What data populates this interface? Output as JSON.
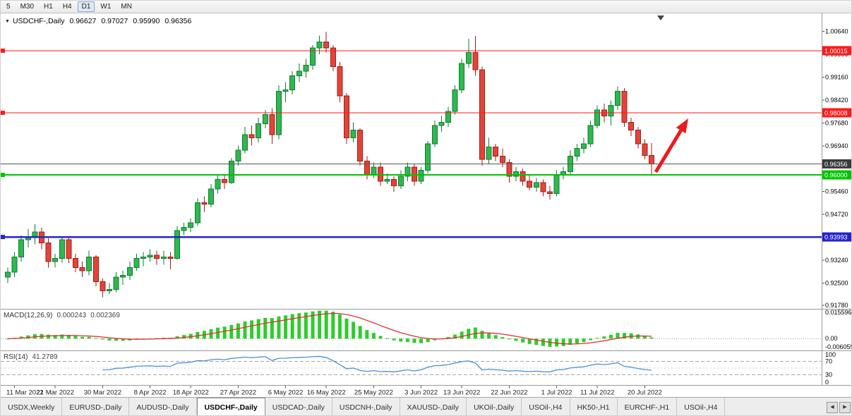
{
  "toolbar": {
    "timeframes": [
      {
        "label": "5",
        "active": false
      },
      {
        "label": "M30",
        "active": false
      },
      {
        "label": "H1",
        "active": false
      },
      {
        "label": "H4",
        "active": false
      },
      {
        "label": "D1",
        "active": true
      },
      {
        "label": "W1",
        "active": false
      },
      {
        "label": "MN",
        "active": false
      }
    ]
  },
  "chart": {
    "dropdown_icon": "▼",
    "title_symbol": "USDCHF-,Daily",
    "ohlc_display": {
      "open": "0.96627",
      "high": "0.97027",
      "low": "0.95990",
      "close": "0.96356"
    }
  },
  "macd_panel": {
    "label": "MACD(12,26,9)",
    "main_value": "0.000243",
    "signal_value": "0.002369",
    "axis_labels": [
      "0.015596",
      "0.00",
      "-0.006055"
    ]
  },
  "rsi_panel": {
    "label": "RSI(14)",
    "value": "41.2789",
    "level_labels": [
      "100",
      "70",
      "30",
      "0"
    ]
  },
  "tabs": {
    "scroll_left_icon": "◀",
    "scroll_right_icon": "▶",
    "items": [
      {
        "label": "USDX,Weekly",
        "active": false
      },
      {
        "label": "EURUSD-,Daily",
        "active": false
      },
      {
        "label": "AUDUSD-,Daily",
        "active": false
      },
      {
        "label": "USDCHF-,Daily",
        "active": true
      },
      {
        "label": "USDCAD-,Daily",
        "active": false
      },
      {
        "label": "USDCNH-,Daily",
        "active": false
      },
      {
        "label": "XAUUSD-,Daily",
        "active": false
      },
      {
        "label": "UKOil-,Daily",
        "active": false
      },
      {
        "label": "USOil-,H4",
        "active": false
      },
      {
        "label": "HK50-,H1",
        "active": false
      },
      {
        "label": "EURCHF-,H1",
        "active": false
      },
      {
        "label": "USOil-,H4",
        "active": false
      }
    ]
  },
  "chart_data": {
    "type": "candlestick",
    "symbol": "USDCHF",
    "timeframe": "Daily",
    "current": {
      "open": 0.96627,
      "high": 0.97027,
      "low": 0.9599,
      "close": 0.96356
    },
    "y_range": [
      0.9167,
      1.0122
    ],
    "y_ticks": [
      1.0064,
      0.999,
      0.9916,
      0.9842,
      0.9768,
      0.9694,
      0.9546,
      0.9472,
      0.9324,
      0.925,
      0.9178
    ],
    "x_ticks": [
      {
        "i": 1,
        "label": "11 Mar 2022"
      },
      {
        "i": 7,
        "label": "21 Mar 2022"
      },
      {
        "i": 14,
        "label": "30 Mar 2022"
      },
      {
        "i": 21,
        "label": "8 Apr 2022"
      },
      {
        "i": 27,
        "label": "18 Apr 2022"
      },
      {
        "i": 34,
        "label": "27 Apr 2022"
      },
      {
        "i": 41,
        "label": "6 May 2022"
      },
      {
        "i": 47,
        "label": "16 May 2022"
      },
      {
        "i": 54,
        "label": "25 May 2022"
      },
      {
        "i": 61,
        "label": "3 Jun 2022"
      },
      {
        "i": 67,
        "label": "13 Jun 2022"
      },
      {
        "i": 74,
        "label": "22 Jun 2022"
      },
      {
        "i": 81,
        "label": "1 Jul 2022"
      },
      {
        "i": 87,
        "label": "11 Jul 2022"
      },
      {
        "i": 94,
        "label": "20 Jul 2022"
      }
    ],
    "hlines": [
      {
        "label": "1.00015",
        "price": 1.00015,
        "color": "#ff1a1a",
        "width": 1.2,
        "handle": true
      },
      {
        "label": "0.98008",
        "price": 0.98008,
        "color": "#ff1a1a",
        "width": 1.2,
        "handle": true
      },
      {
        "label": "0.96356",
        "price": 0.96356,
        "color": "#555555",
        "badge_color": "#3a3a3a",
        "width": 1,
        "handle": false,
        "role": "current-price"
      },
      {
        "label": "0.96000",
        "price": 0.96,
        "color": "#00c400",
        "width": 2,
        "handle": true
      },
      {
        "label": "0.93993",
        "price": 0.93993,
        "color": "#2424cc",
        "width": 2.4,
        "handle": true
      }
    ],
    "arrow": {
      "color": "#ea1c1c",
      "direction": "up-right"
    },
    "colors": {
      "bull_fill": "#2fb84f",
      "bull_stroke": "#117a33",
      "bear_fill": "#e3443a",
      "bear_stroke": "#9c1f17"
    },
    "macd": {
      "params": [
        12,
        26,
        9
      ],
      "range": [
        -0.0065,
        0.016
      ],
      "hist_color": "#2ecc2e",
      "signal_color": "#e03030"
    },
    "rsi": {
      "period": 14,
      "levels": [
        100,
        70,
        30,
        0
      ],
      "color": "#4a8fd4"
    },
    "ohlc": [
      [
        "10 Mar",
        0.927,
        0.93,
        0.925,
        0.9285
      ],
      [
        "11 Mar",
        0.9285,
        0.935,
        0.927,
        0.9335
      ],
      [
        "14 Mar",
        0.9335,
        0.9405,
        0.932,
        0.939
      ],
      [
        "15 Mar",
        0.939,
        0.9425,
        0.9365,
        0.94
      ],
      [
        "16 Mar",
        0.94,
        0.944,
        0.9375,
        0.9415
      ],
      [
        "17 Mar",
        0.9415,
        0.943,
        0.936,
        0.938
      ],
      [
        "18 Mar",
        0.938,
        0.9395,
        0.93,
        0.932
      ],
      [
        "21 Mar",
        0.932,
        0.9345,
        0.93,
        0.933
      ],
      [
        "22 Mar",
        0.933,
        0.94,
        0.9315,
        0.939
      ],
      [
        "23 Mar",
        0.939,
        0.94,
        0.9315,
        0.933
      ],
      [
        "24 Mar",
        0.933,
        0.9345,
        0.9285,
        0.93
      ],
      [
        "25 Mar",
        0.93,
        0.932,
        0.927,
        0.929
      ],
      [
        "28 Mar",
        0.929,
        0.9355,
        0.9275,
        0.9335
      ],
      [
        "29 Mar",
        0.9335,
        0.934,
        0.924,
        0.9255
      ],
      [
        "30 Mar",
        0.9255,
        0.9265,
        0.9205,
        0.9225
      ],
      [
        "31 Mar",
        0.9225,
        0.925,
        0.9215,
        0.923
      ],
      [
        "1 Apr",
        0.923,
        0.9285,
        0.922,
        0.927
      ],
      [
        "4 Apr",
        0.927,
        0.929,
        0.9245,
        0.9275
      ],
      [
        "5 Apr",
        0.9275,
        0.932,
        0.926,
        0.93
      ],
      [
        "6 Apr",
        0.93,
        0.9345,
        0.929,
        0.933
      ],
      [
        "7 Apr",
        0.933,
        0.935,
        0.9305,
        0.9335
      ],
      [
        "8 Apr",
        0.9335,
        0.936,
        0.932,
        0.934
      ],
      [
        "11 Apr",
        0.934,
        0.9355,
        0.931,
        0.933
      ],
      [
        "12 Apr",
        0.933,
        0.9355,
        0.931,
        0.9335
      ],
      [
        "13 Apr",
        0.9335,
        0.935,
        0.9295,
        0.933
      ],
      [
        "14 Apr",
        0.933,
        0.9435,
        0.9325,
        0.942
      ],
      [
        "15 Apr",
        0.942,
        0.9445,
        0.9405,
        0.943
      ],
      [
        "18 Apr",
        0.943,
        0.946,
        0.9415,
        0.9445
      ],
      [
        "19 Apr",
        0.9445,
        0.9525,
        0.9435,
        0.951
      ],
      [
        "20 Apr",
        0.951,
        0.953,
        0.948,
        0.9505
      ],
      [
        "21 Apr",
        0.9505,
        0.957,
        0.9495,
        0.9555
      ],
      [
        "22 Apr",
        0.9555,
        0.96,
        0.954,
        0.9585
      ],
      [
        "25 Apr",
        0.9585,
        0.96,
        0.9555,
        0.9575
      ],
      [
        "26 Apr",
        0.9575,
        0.9655,
        0.957,
        0.9645
      ],
      [
        "27 Apr",
        0.9645,
        0.9695,
        0.963,
        0.968
      ],
      [
        "28 Apr",
        0.968,
        0.9755,
        0.967,
        0.973
      ],
      [
        "29 Apr",
        0.973,
        0.976,
        0.9695,
        0.972
      ],
      [
        "2 May",
        0.972,
        0.9785,
        0.9705,
        0.9765
      ],
      [
        "3 May",
        0.9765,
        0.981,
        0.975,
        0.9795
      ],
      [
        "4 May",
        0.9795,
        0.9815,
        0.97,
        0.973
      ],
      [
        "5 May",
        0.973,
        0.989,
        0.9715,
        0.987
      ],
      [
        "6 May",
        0.987,
        0.99,
        0.9835,
        0.9875
      ],
      [
        "9 May",
        0.9875,
        0.9935,
        0.986,
        0.992
      ],
      [
        "10 May",
        0.992,
        0.996,
        0.99,
        0.9935
      ],
      [
        "11 May",
        0.9935,
        0.9975,
        0.9915,
        0.9955
      ],
      [
        "12 May",
        0.9955,
        1.002,
        0.994,
        1.001
      ],
      [
        "13 May",
        1.001,
        1.005,
        0.999,
        1.003
      ],
      [
        "16 May",
        1.003,
        1.0063,
        0.9995,
        1.001
      ],
      [
        "17 May",
        1.001,
        1.002,
        0.9935,
        0.995
      ],
      [
        "18 May",
        0.995,
        0.9965,
        0.9835,
        0.9855
      ],
      [
        "19 May",
        0.9855,
        0.9865,
        0.97,
        0.972
      ],
      [
        "20 May",
        0.972,
        0.977,
        0.9705,
        0.9745
      ],
      [
        "23 May",
        0.9745,
        0.975,
        0.963,
        0.9645
      ],
      [
        "24 May",
        0.9645,
        0.966,
        0.9585,
        0.96
      ],
      [
        "25 May",
        0.96,
        0.964,
        0.959,
        0.9625
      ],
      [
        "26 May",
        0.9625,
        0.964,
        0.9565,
        0.958
      ],
      [
        "27 May",
        0.958,
        0.9605,
        0.957,
        0.9585
      ],
      [
        "30 May",
        0.9585,
        0.9595,
        0.9545,
        0.9565
      ],
      [
        "31 May",
        0.9565,
        0.9615,
        0.9555,
        0.9595
      ],
      [
        "1 Jun",
        0.9595,
        0.964,
        0.958,
        0.9625
      ],
      [
        "2 Jun",
        0.9625,
        0.9635,
        0.9565,
        0.958
      ],
      [
        "3 Jun",
        0.958,
        0.9625,
        0.957,
        0.9615
      ],
      [
        "6 Jun",
        0.9615,
        0.971,
        0.9605,
        0.97
      ],
      [
        "7 Jun",
        0.97,
        0.9775,
        0.969,
        0.976
      ],
      [
        "8 Jun",
        0.976,
        0.979,
        0.974,
        0.977
      ],
      [
        "9 Jun",
        0.977,
        0.982,
        0.9755,
        0.9805
      ],
      [
        "10 Jun",
        0.9805,
        0.989,
        0.9795,
        0.9875
      ],
      [
        "13 Jun",
        0.9875,
        0.9975,
        0.9865,
        0.996
      ],
      [
        "14 Jun",
        0.996,
        1.004,
        0.9945,
        0.9995
      ],
      [
        "15 Jun",
        0.9995,
        1.0049,
        0.992,
        0.994
      ],
      [
        "16 Jun",
        0.994,
        0.995,
        0.963,
        0.965
      ],
      [
        "17 Jun",
        0.965,
        0.972,
        0.9635,
        0.969
      ],
      [
        "20 Jun",
        0.969,
        0.97,
        0.9645,
        0.966
      ],
      [
        "21 Jun",
        0.966,
        0.9685,
        0.9625,
        0.964
      ],
      [
        "22 Jun",
        0.964,
        0.965,
        0.9575,
        0.9595
      ],
      [
        "23 Jun",
        0.9595,
        0.9625,
        0.958,
        0.961
      ],
      [
        "24 Jun",
        0.961,
        0.962,
        0.9565,
        0.958
      ],
      [
        "27 Jun",
        0.958,
        0.96,
        0.955,
        0.956
      ],
      [
        "28 Jun",
        0.956,
        0.959,
        0.9545,
        0.9575
      ],
      [
        "29 Jun",
        0.9575,
        0.9585,
        0.953,
        0.9545
      ],
      [
        "30 Jun",
        0.9545,
        0.9565,
        0.952,
        0.954
      ],
      [
        "1 Jul",
        0.954,
        0.9615,
        0.953,
        0.96
      ],
      [
        "4 Jul",
        0.96,
        0.9625,
        0.9585,
        0.961
      ],
      [
        "5 Jul",
        0.961,
        0.968,
        0.96,
        0.966
      ],
      [
        "6 Jul",
        0.966,
        0.97,
        0.9645,
        0.9685
      ],
      [
        "7 Jul",
        0.9685,
        0.972,
        0.967,
        0.97
      ],
      [
        "8 Jul",
        0.97,
        0.9775,
        0.969,
        0.976
      ],
      [
        "11 Jul",
        0.976,
        0.9825,
        0.975,
        0.981
      ],
      [
        "12 Jul",
        0.981,
        0.983,
        0.977,
        0.979
      ],
      [
        "13 Jul",
        0.979,
        0.984,
        0.976,
        0.9825
      ],
      [
        "14 Jul",
        0.9825,
        0.9886,
        0.981,
        0.987
      ],
      [
        "15 Jul",
        0.987,
        0.988,
        0.9755,
        0.977
      ],
      [
        "18 Jul",
        0.977,
        0.9785,
        0.9725,
        0.9745
      ],
      [
        "19 Jul",
        0.9745,
        0.9755,
        0.9685,
        0.97
      ],
      [
        "20 Jul",
        0.97,
        0.9715,
        0.965,
        0.9663
      ],
      [
        "21 Jul",
        0.96627,
        0.97027,
        0.9599,
        0.96356
      ]
    ]
  }
}
